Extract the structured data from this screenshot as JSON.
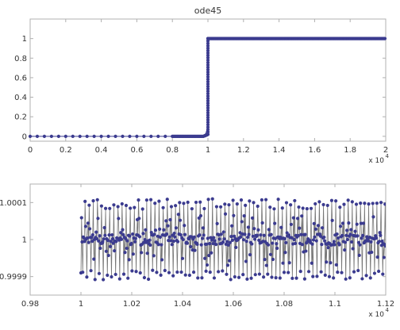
{
  "chart_data": [
    {
      "type": "line",
      "title": "ode45",
      "xlabel": "",
      "ylabel": "",
      "xlim": [
        0,
        2
      ],
      "ylim": [
        -0.05,
        1.2
      ],
      "x_exponent_label": "x 10",
      "x_exponent_power": "4",
      "x_ticks": [
        {
          "value": 0,
          "label": "0"
        },
        {
          "value": 0.2,
          "label": "0.2"
        },
        {
          "value": 0.4,
          "label": "0.4"
        },
        {
          "value": 0.6,
          "label": "0.6"
        },
        {
          "value": 0.8,
          "label": "0.8"
        },
        {
          "value": 1.0,
          "label": "1"
        },
        {
          "value": 1.2,
          "label": "1.2"
        },
        {
          "value": 1.4,
          "label": "1.4"
        },
        {
          "value": 1.6,
          "label": "1.6"
        },
        {
          "value": 1.8,
          "label": "1.8"
        },
        {
          "value": 2.0,
          "label": "2"
        }
      ],
      "y_ticks": [
        {
          "value": 0,
          "label": "0"
        },
        {
          "value": 0.2,
          "label": "0.2"
        },
        {
          "value": 0.4,
          "label": "0.4"
        },
        {
          "value": 0.6,
          "label": "0.6"
        },
        {
          "value": 0.8,
          "label": "0.8"
        },
        {
          "value": 1.0,
          "label": "1"
        }
      ],
      "grid": false,
      "series": [
        {
          "color": "#3b3b8f",
          "marker": "circle",
          "x": [
            0,
            0.04,
            0.1,
            0.16,
            0.22,
            0.28,
            0.34,
            0.4,
            0.46,
            0.52,
            0.58,
            0.64,
            0.7,
            0.76,
            0.8,
            0.83,
            0.86,
            0.89,
            0.92,
            0.94,
            0.96,
            0.975,
            0.985,
            0.99,
            0.993,
            0.995,
            0.997,
            0.998,
            0.999,
            0.9995,
            1.0,
            1.0,
            1.0,
            1.0,
            1.0,
            1.0,
            1.0,
            1.0,
            1.0,
            1.0,
            1.0,
            1.0,
            1.0,
            1.0,
            1.0,
            1.0,
            1.0,
            1.0,
            1.0,
            1.0,
            1.0,
            1.0,
            1.0,
            1.0,
            1.0,
            1.0,
            1.0,
            1.0,
            1.0,
            1.0,
            1.0,
            1.001,
            1.003,
            1.006,
            1.01,
            1.02,
            1.04,
            1.1,
            1.2,
            1.4,
            1.6,
            1.8,
            2.0
          ],
          "y": [
            0,
            0,
            0,
            0,
            0,
            0,
            0,
            0,
            0,
            0,
            0,
            0,
            0,
            0,
            0,
            0,
            0,
            0,
            0,
            0.002,
            0.005,
            0.01,
            0.02,
            0.04,
            0.06,
            0.08,
            0.1,
            0.12,
            0.14,
            0.16,
            0.18,
            0.2,
            0.24,
            0.28,
            0.32,
            0.36,
            0.4,
            0.44,
            0.48,
            0.52,
            0.56,
            0.6,
            0.64,
            0.68,
            0.72,
            0.76,
            0.8,
            0.84,
            0.88,
            0.9,
            0.92,
            0.94,
            0.95,
            0.96,
            0.97,
            0.98,
            0.985,
            0.99,
            0.995,
            0.998,
            1.0,
            1.0,
            1.0,
            1.0,
            1.0,
            1.0,
            1.0,
            1.0,
            1.0,
            1.0,
            1.0,
            1.0,
            1.0
          ]
        }
      ]
    },
    {
      "type": "line",
      "title": "",
      "xlabel": "",
      "ylabel": "",
      "xlim": [
        0.98,
        1.12
      ],
      "ylim": [
        0.99985,
        1.00015
      ],
      "x_exponent_label": "x 10",
      "x_exponent_power": "4",
      "x_ticks": [
        {
          "value": 0.98,
          "label": "0.98"
        },
        {
          "value": 1.0,
          "label": "1"
        },
        {
          "value": 1.02,
          "label": "1.02"
        },
        {
          "value": 1.04,
          "label": "1.04"
        },
        {
          "value": 1.06,
          "label": "1.06"
        },
        {
          "value": 1.08,
          "label": "1.08"
        },
        {
          "value": 1.1,
          "label": "1.1"
        },
        {
          "value": 1.12,
          "label": "1.12"
        }
      ],
      "y_ticks": [
        {
          "value": 0.9999,
          "label": "0.9999"
        },
        {
          "value": 1.0,
          "label": "1"
        },
        {
          "value": 1.0001,
          "label": "1.0001"
        }
      ],
      "grid": false,
      "series": [
        {
          "color": "#3b3b8f",
          "marker": "circle",
          "x_start": 1.0,
          "x_end": 1.12,
          "point_count": 520,
          "y_center": 1.0,
          "y_max_deviation": 0.00011
        }
      ]
    }
  ]
}
